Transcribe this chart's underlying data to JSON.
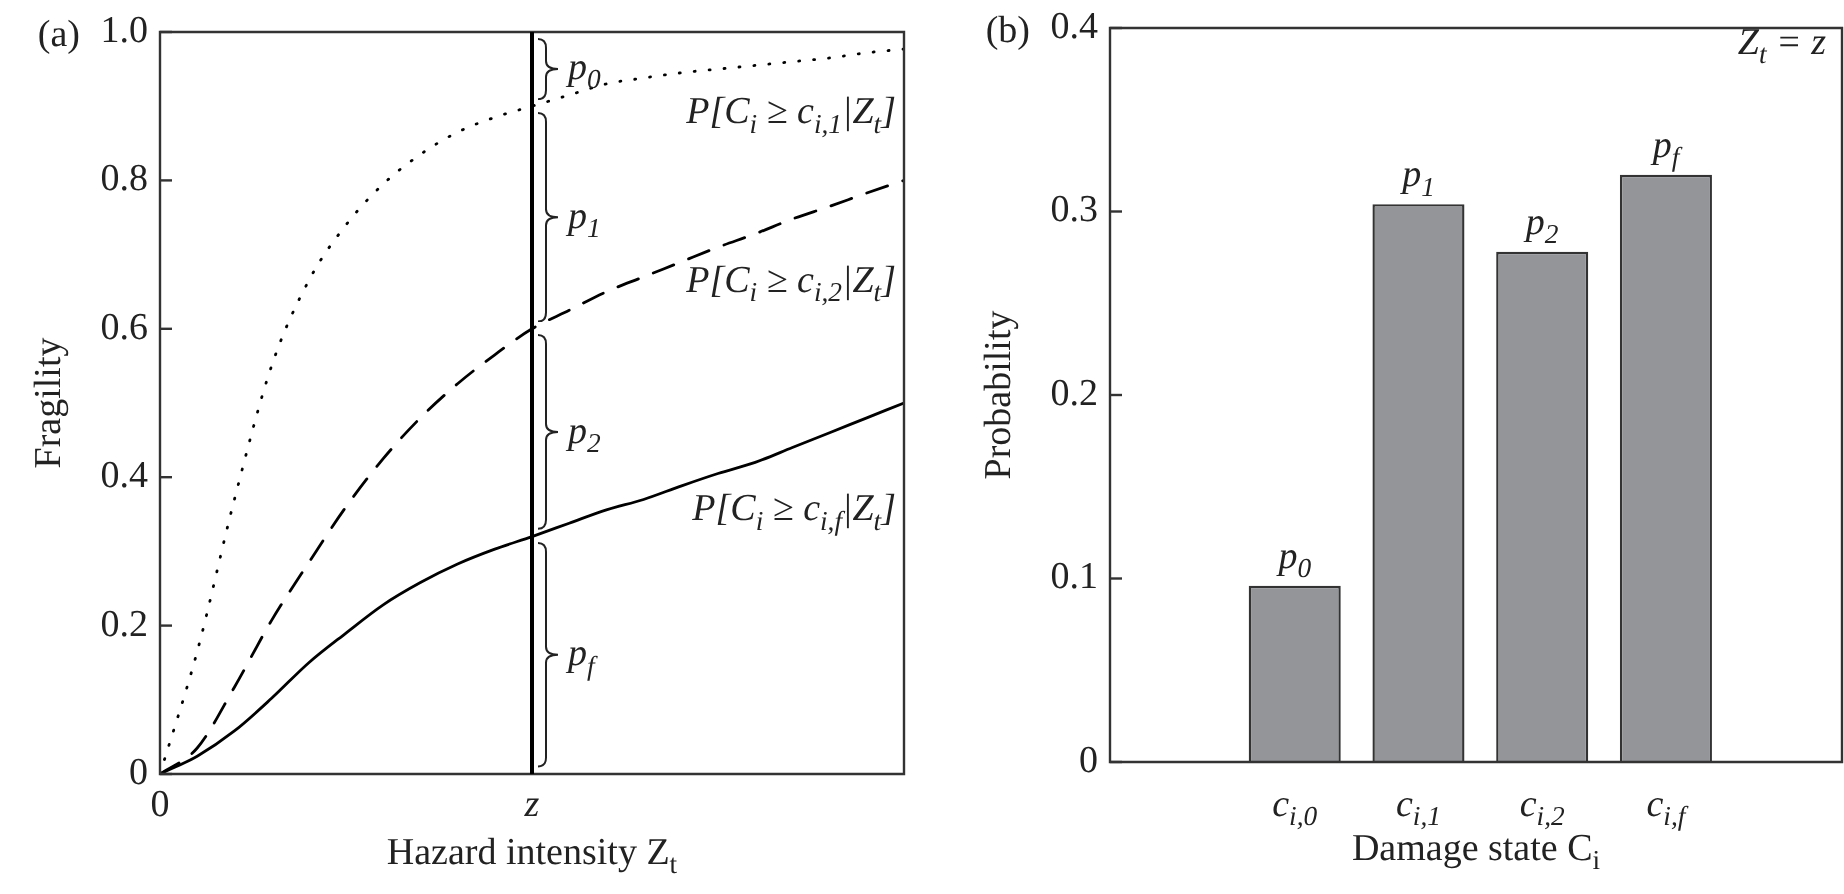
{
  "chart_data": [
    {
      "type": "line",
      "xlabel": "Hazard intensity Z$_{t}$",
      "ylabel": "Fragility",
      "categories": [
        "0",
        null,
        null,
        null,
        null,
        null,
        null,
        null,
        null,
        null,
        "z",
        null,
        null,
        null,
        null,
        null,
        null,
        null,
        null,
        null,
        null
      ],
      "ylim": [
        0,
        1
      ],
      "yticks": [
        0,
        0.2,
        0.4,
        0.6,
        0.8,
        {
          "value": 1,
          "label": "1.0"
        }
      ],
      "marker": "none",
      "series": [
        {
          "name": "P[C$_{i}$ ≥ c$_{i,1}$|Z$_{t}$]",
          "color": "#000000",
          "line_style": "dotted",
          "values": [
            0,
            0.165,
            0.37,
            0.55,
            0.665,
            0.74,
            0.795,
            0.835,
            0.865,
            0.885,
            0.9,
            0.915,
            0.93,
            0.938,
            0.945,
            0.95,
            0.955,
            0.96,
            0.965,
            0.972,
            0.977
          ]
        },
        {
          "name": "P[C$_{i}$ ≥ c$_{i,2}$|Z$_{t}$]",
          "color": "#000000",
          "line_style": "dashed",
          "values": [
            0,
            0.035,
            0.117,
            0.207,
            0.285,
            0.36,
            0.425,
            0.48,
            0.526,
            0.565,
            0.6,
            0.625,
            0.65,
            0.67,
            0.69,
            0.71,
            0.728,
            0.748,
            0.765,
            0.783,
            0.8
          ]
        },
        {
          "name": "P[C$_{i}$ ≥ c$_{i,f}$|Z$_{t}$]",
          "color": "#000000",
          "line_style": "solid",
          "values": [
            0,
            0.024,
            0.058,
            0.102,
            0.15,
            0.19,
            0.228,
            0.258,
            0.283,
            0.303,
            0.32,
            0.338,
            0.356,
            0.37,
            0.388,
            0.405,
            0.42,
            0.44,
            0.46,
            0.48,
            0.5
          ]
        }
      ],
      "ref_lines": [
        {
          "axis": "x",
          "value": "z",
          "color": "#000000"
        }
      ],
      "annotations": [
        "(a)",
        {
          "text": "p$_{0}$",
          "x": "z",
          "y": 0.95
        },
        {
          "text": "p$_{1}$",
          "x": "z",
          "y": 0.75
        },
        {
          "text": "p$_{2}$",
          "x": "z",
          "y": 0.46
        },
        {
          "text": "p$_{f}$",
          "x": "z",
          "y": 0.16
        }
      ]
    },
    {
      "type": "bar",
      "xlabel": "Damage state C$_{i}$",
      "ylabel": "Probability",
      "categories": [
        "c$_{i,0}$",
        "c$_{i,1}$",
        "c$_{i,2}$",
        "c$_{i,f}$"
      ],
      "values": [
        0.096,
        0.304,
        0.278,
        0.32
      ],
      "color": "#939598",
      "ylim": [
        0,
        0.4
      ],
      "yticks": [
        0,
        0.1,
        0.2,
        0.3,
        0.4
      ],
      "annotations": [
        "(b)",
        "Z$_{t}$ = z",
        {
          "text": "p$_{0}$",
          "x": "c$_{i,0}$",
          "y": 0.096
        },
        {
          "text": "p$_{1}$",
          "x": "c$_{i,1}$",
          "y": 0.304
        },
        {
          "text": "p$_{2}$",
          "x": "c$_{i,2}$",
          "y": 0.278
        },
        {
          "text": "p$_{f}$",
          "x": "c$_{i,f}$",
          "y": 0.32
        }
      ]
    }
  ]
}
